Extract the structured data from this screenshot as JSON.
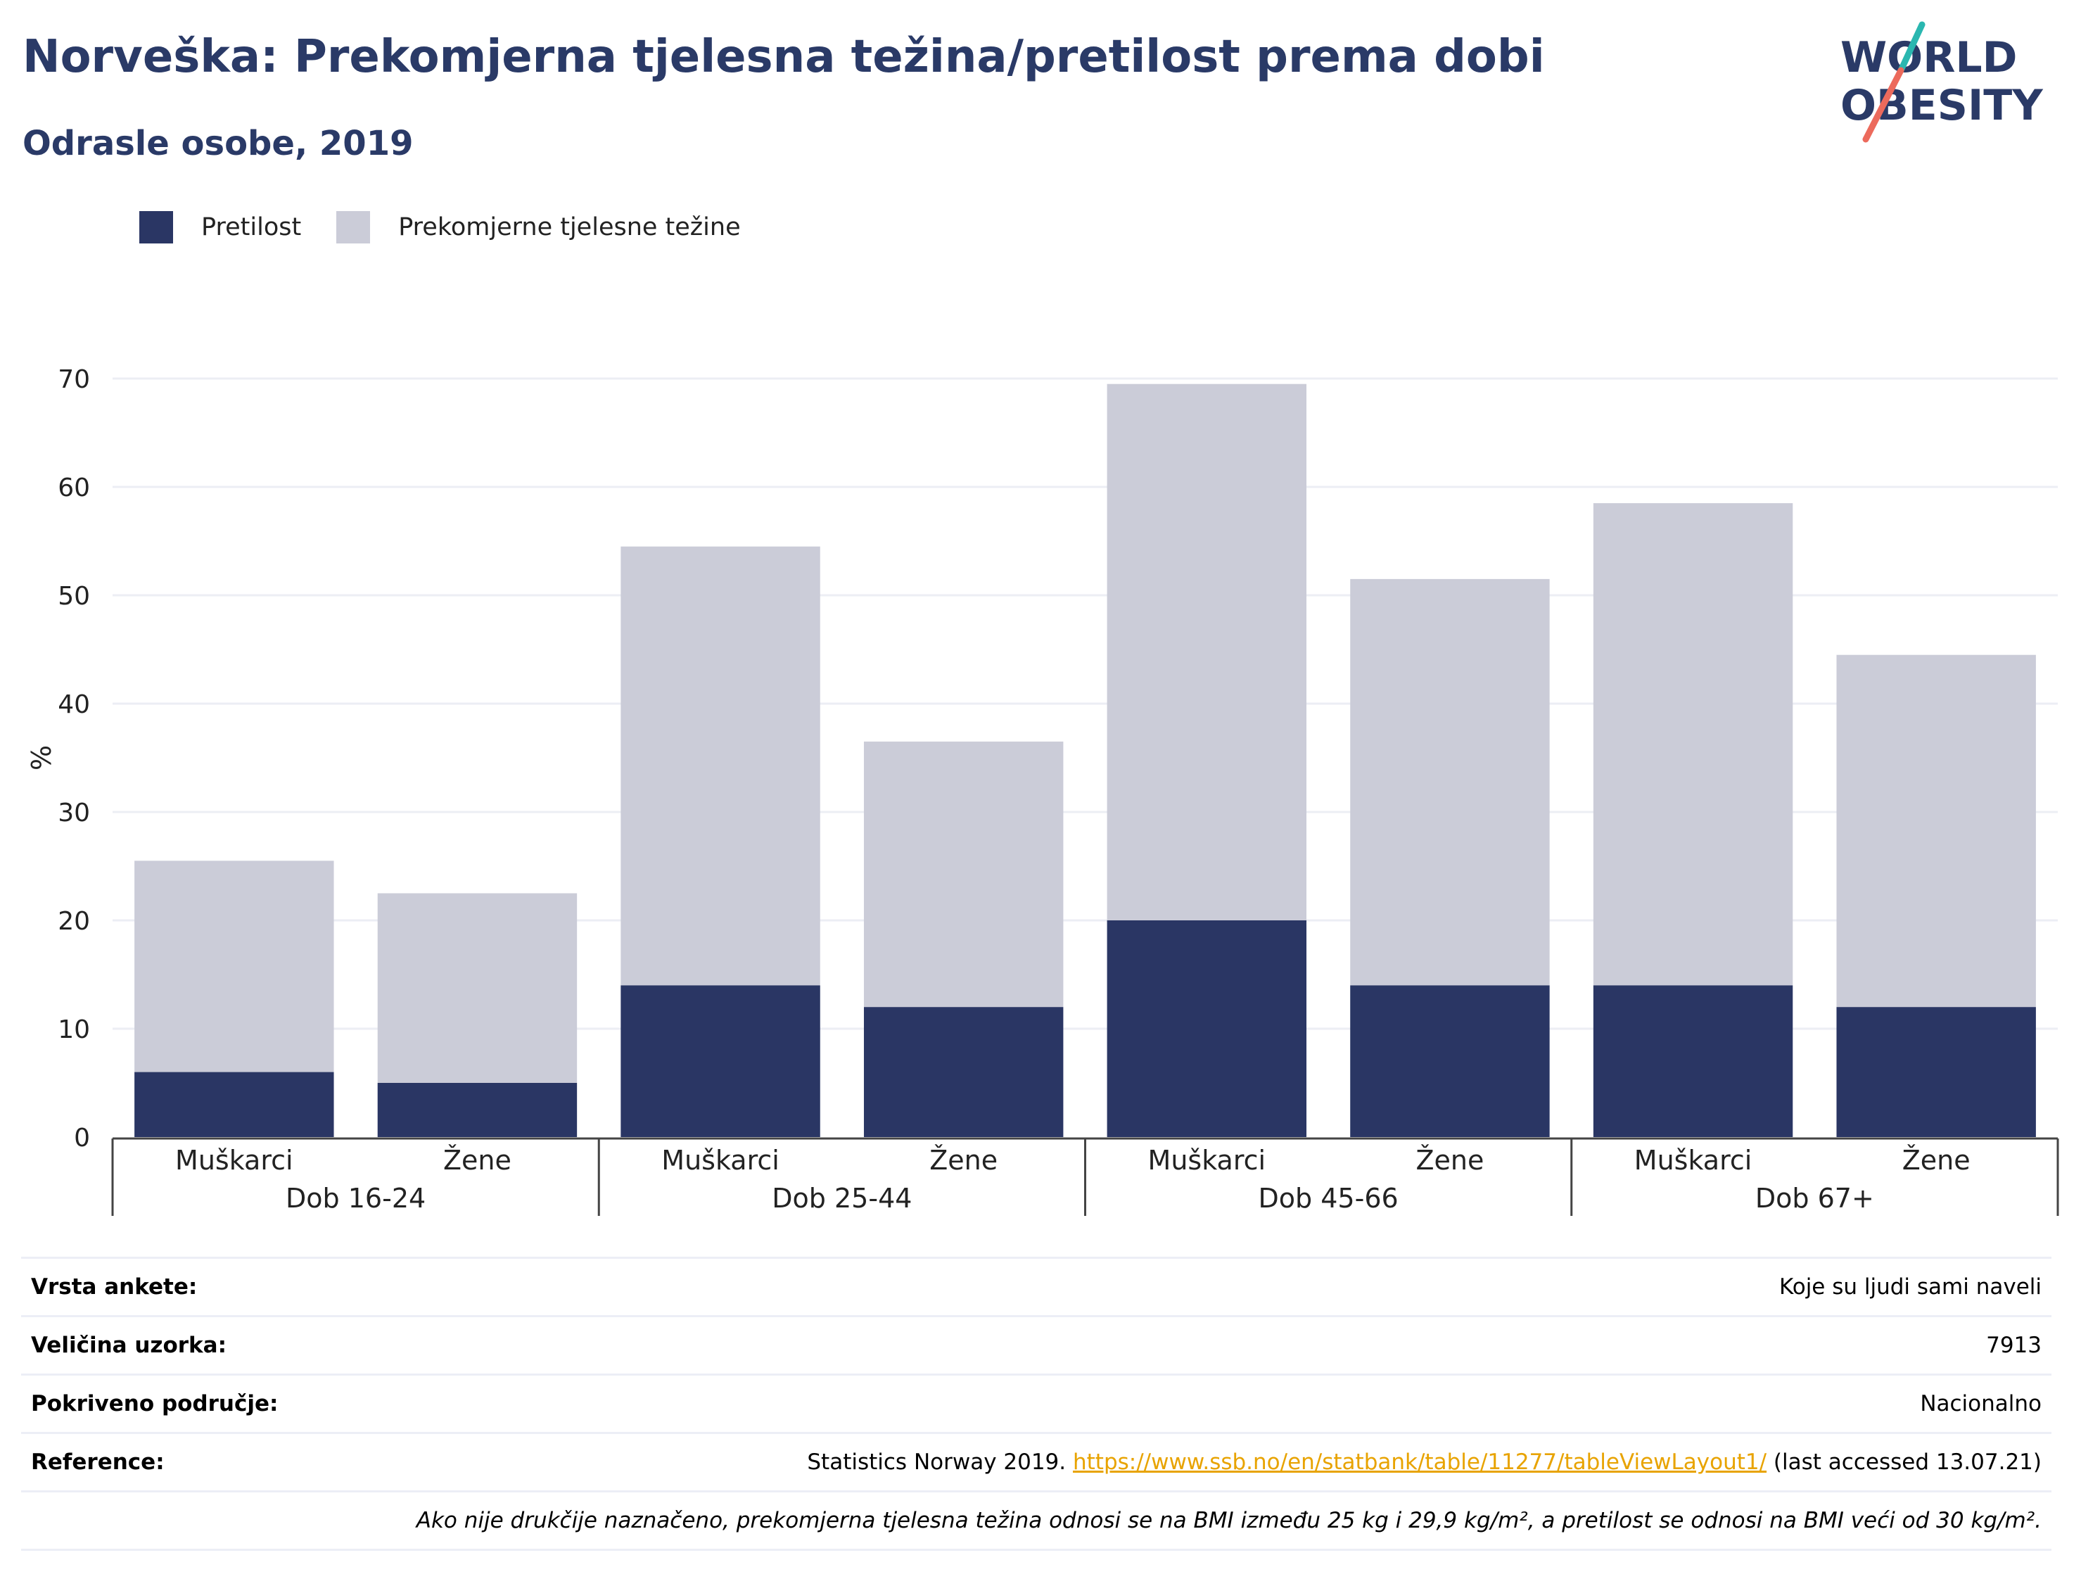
{
  "title": "Norveška: Prekomjerna tjelesna težina/pretilost prema dobi",
  "subtitle": "Odrasle osobe, 2019",
  "logo": {
    "line1": "WORLD",
    "line2": "OBESITY",
    "colors": {
      "text": "#2a3a67",
      "slash_top": "#2ab7b0",
      "slash_bottom": "#ec6a5c"
    }
  },
  "colors": {
    "obesity": "#2a3664",
    "overweight": "#cbccd8",
    "axis": "#444444",
    "grid": "#eceef4",
    "link": "#e8a300"
  },
  "legend": [
    {
      "label": "Pretilost",
      "color": "#2a3664"
    },
    {
      "label": "Prekomjerne tjelesne težine",
      "color": "#cbccd8"
    }
  ],
  "chart_data": {
    "type": "bar",
    "stacked": true,
    "ylabel": "%",
    "ylim": [
      0,
      70
    ],
    "yticks": [
      0,
      10,
      20,
      30,
      40,
      50,
      60,
      70
    ],
    "grid": true,
    "legend_position": "top-left",
    "groups": [
      {
        "label": "Dob 16-24",
        "categories": [
          "Muškarci",
          "Žene"
        ]
      },
      {
        "label": "Dob 25-44",
        "categories": [
          "Muškarci",
          "Žene"
        ]
      },
      {
        "label": "Dob 45-66",
        "categories": [
          "Muškarci",
          "Žene"
        ]
      },
      {
        "label": "Dob 67+",
        "categories": [
          "Muškarci",
          "Žene"
        ]
      }
    ],
    "series": [
      {
        "name": "Pretilost",
        "values": [
          6,
          5,
          14,
          12,
          20,
          14,
          14,
          12
        ]
      },
      {
        "name": "Prekomjerne tjelesne težine",
        "values": [
          19.5,
          17.5,
          40.5,
          24.5,
          49.5,
          37.5,
          44.5,
          32.5
        ]
      }
    ]
  },
  "meta": [
    {
      "label": "Vrsta ankete:",
      "value": "Koje su ljudi sami naveli"
    },
    {
      "label": "Veličina uzorka:",
      "value": "7913"
    },
    {
      "label": "Pokriveno područje:",
      "value": "Nacionalno"
    }
  ],
  "reference": {
    "label": "Reference:",
    "prefix": "Statistics Norway 2019. ",
    "link": "https://www.ssb.no/en/statbank/table/11277/tableViewLayout1/",
    "suffix": " (last accessed 13.07.21)"
  },
  "note": "Ako nije drukčije naznačeno, prekomjerna tjelesna težina odnosi se na BMI između 25 kg i 29,9 kg/m², a pretilost se odnosi na BMI veći od 30 kg/m²."
}
